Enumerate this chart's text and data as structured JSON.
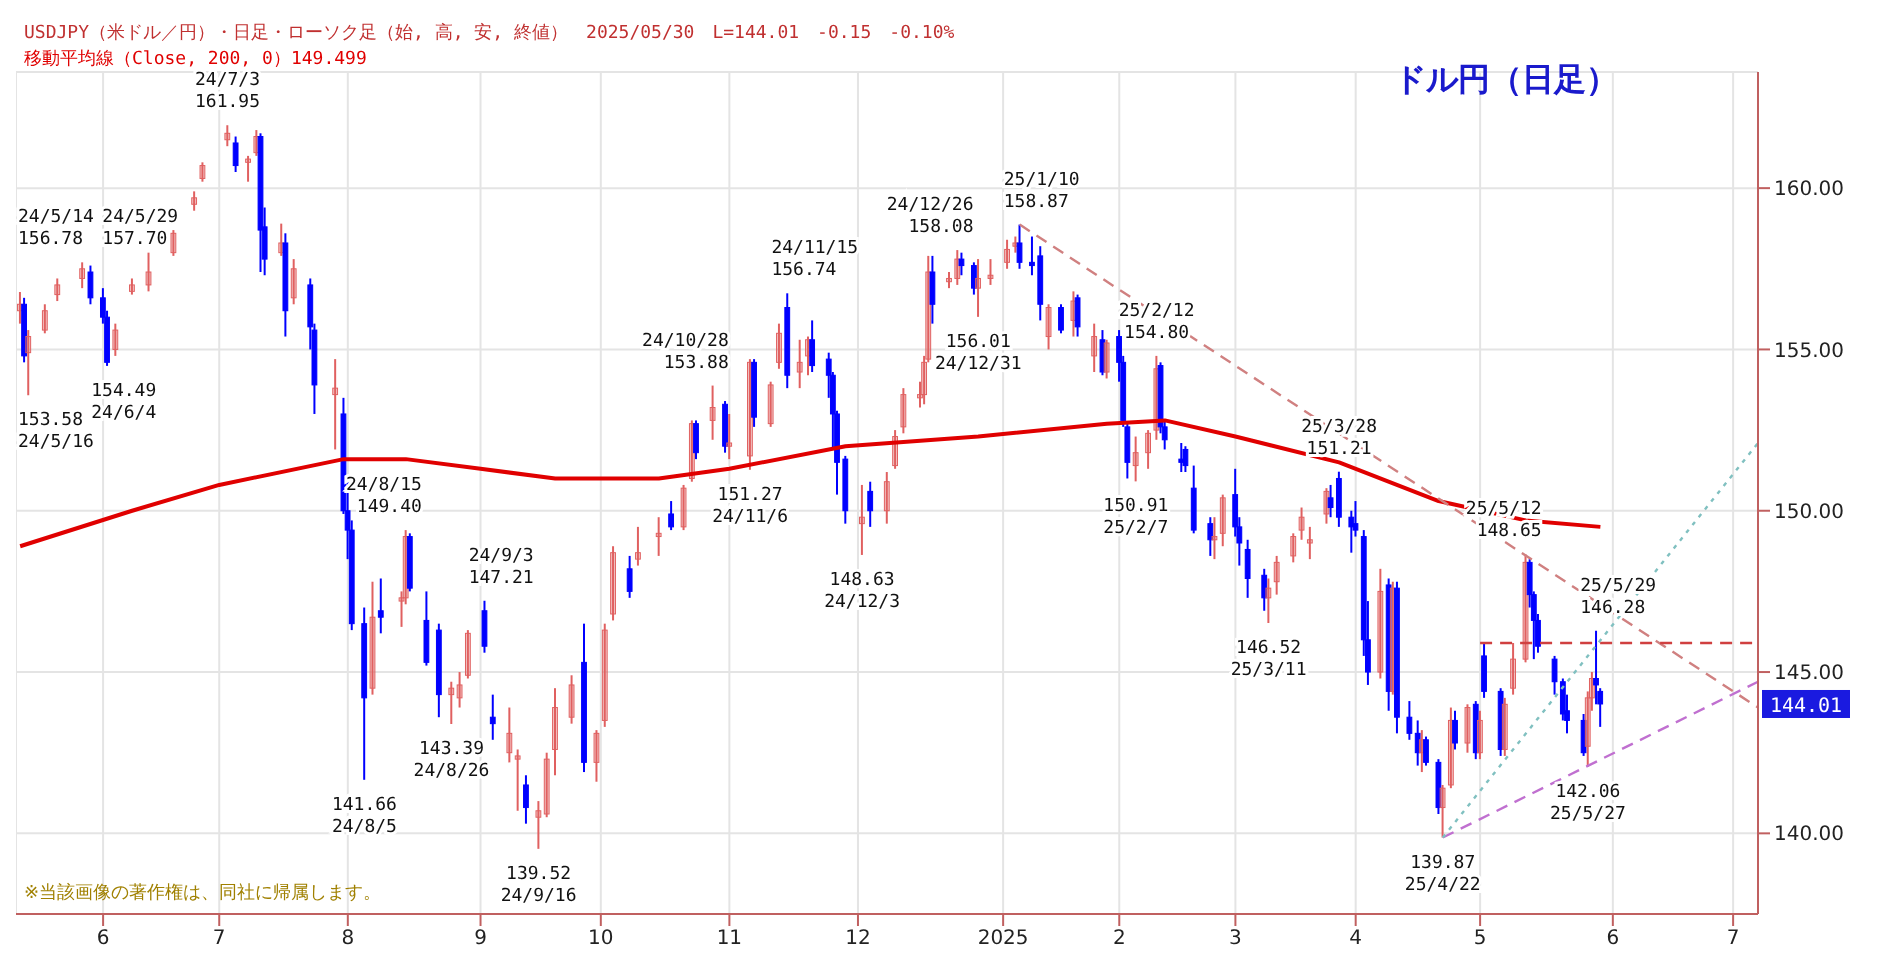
{
  "chart_data": {
    "type": "candlestick",
    "title": "ドル円（日足）",
    "subtitle": "USDJPY（米ドル／円）・日足・ローソク足（始, 高, 安, 終値）　2025/05/30　L=144.01　-0.15　-0.10%",
    "x": [
      "2024-05-14",
      "2024-05-15",
      "2024-05-16",
      "2024-05-20",
      "2024-05-23",
      "2024-05-29",
      "2024-05-31",
      "2024-06-03",
      "2024-06-04",
      "2024-06-06",
      "2024-06-10",
      "2024-06-14",
      "2024-06-20",
      "2024-06-25",
      "2024-06-27",
      "2024-07-03",
      "2024-07-05",
      "2024-07-08",
      "2024-07-10",
      "2024-07-11",
      "2024-07-12",
      "2024-07-16",
      "2024-07-17",
      "2024-07-19",
      "2024-07-23",
      "2024-07-24",
      "2024-07-29",
      "2024-07-31",
      "2024-08-01",
      "2024-08-02",
      "2024-08-05",
      "2024-08-07",
      "2024-08-09",
      "2024-08-14",
      "2024-08-15",
      "2024-08-16",
      "2024-08-20",
      "2024-08-23",
      "2024-08-26",
      "2024-08-28",
      "2024-08-30",
      "2024-09-03",
      "2024-09-05",
      "2024-09-09",
      "2024-09-11",
      "2024-09-13",
      "2024-09-16",
      "2024-09-18",
      "2024-09-20",
      "2024-09-24",
      "2024-09-27",
      "2024-09-30",
      "2024-10-02",
      "2024-10-04",
      "2024-10-08",
      "2024-10-10",
      "2024-10-15",
      "2024-10-18",
      "2024-10-21",
      "2024-10-23",
      "2024-10-24",
      "2024-10-28",
      "2024-10-31",
      "2024-11-01",
      "2024-11-06",
      "2024-11-07",
      "2024-11-11",
      "2024-11-13",
      "2024-11-15",
      "2024-11-18",
      "2024-11-20",
      "2024-11-21",
      "2024-11-25",
      "2024-11-26",
      "2024-11-27",
      "2024-11-29",
      "2024-12-03",
      "2024-12-05",
      "2024-12-09",
      "2024-12-11",
      "2024-12-13",
      "2024-12-17",
      "2024-12-18",
      "2024-12-19",
      "2024-12-20",
      "2024-12-24",
      "2024-12-26",
      "2024-12-27",
      "2024-12-30",
      "2024-12-31",
      "2025-01-03",
      "2025-01-07",
      "2025-01-09",
      "2025-01-10",
      "2025-01-13",
      "2025-01-15",
      "2025-01-17",
      "2025-01-20",
      "2025-01-23",
      "2025-01-24",
      "2025-01-28",
      "2025-01-30",
      "2025-01-31",
      "2025-02-03",
      "2025-02-04",
      "2025-02-05",
      "2025-02-07",
      "2025-02-10",
      "2025-02-12",
      "2025-02-13",
      "2025-02-14",
      "2025-02-18",
      "2025-02-19",
      "2025-02-21",
      "2025-02-25",
      "2025-02-26",
      "2025-02-28",
      "2025-03-03",
      "2025-03-04",
      "2025-03-06",
      "2025-03-10",
      "2025-03-11",
      "2025-03-13",
      "2025-03-17",
      "2025-03-19",
      "2025-03-21",
      "2025-03-25",
      "2025-03-26",
      "2025-03-28",
      "2025-03-31",
      "2025-04-01",
      "2025-04-03",
      "2025-04-04",
      "2025-04-07",
      "2025-04-09",
      "2025-04-10",
      "2025-04-11",
      "2025-04-14",
      "2025-04-16",
      "2025-04-17",
      "2025-04-18",
      "2025-04-21",
      "2025-04-22",
      "2025-04-24",
      "2025-04-25",
      "2025-04-28",
      "2025-04-30",
      "2025-05-01",
      "2025-05-02",
      "2025-05-06",
      "2025-05-07",
      "2025-05-09",
      "2025-05-12",
      "2025-05-13",
      "2025-05-14",
      "2025-05-15",
      "2025-05-19",
      "2025-05-21",
      "2025-05-22",
      "2025-05-26",
      "2025-05-27",
      "2025-05-28",
      "2025-05-29",
      "2025-05-30"
    ],
    "ohlc": [
      [
        156.2,
        156.78,
        155.8,
        156.4
      ],
      [
        156.4,
        156.6,
        154.6,
        154.8
      ],
      [
        154.9,
        155.6,
        153.58,
        155.4
      ],
      [
        155.6,
        156.4,
        155.5,
        156.2
      ],
      [
        156.7,
        157.2,
        156.5,
        157.0
      ],
      [
        157.2,
        157.7,
        156.9,
        157.5
      ],
      [
        157.4,
        157.6,
        156.4,
        156.6
      ],
      [
        156.6,
        156.9,
        155.8,
        156.0
      ],
      [
        156.0,
        156.2,
        154.49,
        154.6
      ],
      [
        155.0,
        155.8,
        154.8,
        155.6
      ],
      [
        156.8,
        157.2,
        156.7,
        157.0
      ],
      [
        157.0,
        158.0,
        156.8,
        157.4
      ],
      [
        158.0,
        158.7,
        157.9,
        158.6
      ],
      [
        159.5,
        159.9,
        159.3,
        159.7
      ],
      [
        160.3,
        160.8,
        160.2,
        160.7
      ],
      [
        161.5,
        161.95,
        161.3,
        161.7
      ],
      [
        161.4,
        161.6,
        160.5,
        160.7
      ],
      [
        160.8,
        161.0,
        160.2,
        160.9
      ],
      [
        161.1,
        161.8,
        161.0,
        161.6
      ],
      [
        161.6,
        161.7,
        157.4,
        158.7
      ],
      [
        158.8,
        159.4,
        157.3,
        157.8
      ],
      [
        158.0,
        158.9,
        157.9,
        158.3
      ],
      [
        158.3,
        158.6,
        155.4,
        156.2
      ],
      [
        156.6,
        157.8,
        156.4,
        157.5
      ],
      [
        157.0,
        157.2,
        155.0,
        155.7
      ],
      [
        155.6,
        155.8,
        153.0,
        153.9
      ],
      [
        153.6,
        154.7,
        151.9,
        153.8
      ],
      [
        153.0,
        153.5,
        149.9,
        150.0
      ],
      [
        150.0,
        150.9,
        148.5,
        149.4
      ],
      [
        149.4,
        149.7,
        146.3,
        146.5
      ],
      [
        146.5,
        147.0,
        141.66,
        144.2
      ],
      [
        144.5,
        147.8,
        144.3,
        146.7
      ],
      [
        146.9,
        147.9,
        146.2,
        146.7
      ],
      [
        147.2,
        147.5,
        146.4,
        147.3
      ],
      [
        147.3,
        149.4,
        147.1,
        149.2
      ],
      [
        149.2,
        149.3,
        147.5,
        147.6
      ],
      [
        146.6,
        147.5,
        145.2,
        145.3
      ],
      [
        146.3,
        146.5,
        143.6,
        144.3
      ],
      [
        144.3,
        144.7,
        143.39,
        144.5
      ],
      [
        144.2,
        145.0,
        143.9,
        144.6
      ],
      [
        144.9,
        146.3,
        144.8,
        146.2
      ],
      [
        146.9,
        147.21,
        145.6,
        145.8
      ],
      [
        143.6,
        144.3,
        142.9,
        143.4
      ],
      [
        142.5,
        143.9,
        142.2,
        143.1
      ],
      [
        142.3,
        142.6,
        140.7,
        142.4
      ],
      [
        141.5,
        141.8,
        140.3,
        140.8
      ],
      [
        140.5,
        141.0,
        139.52,
        140.7
      ],
      [
        140.6,
        142.5,
        140.5,
        142.3
      ],
      [
        142.6,
        144.5,
        141.8,
        143.9
      ],
      [
        143.6,
        144.9,
        143.4,
        144.6
      ],
      [
        145.3,
        146.5,
        141.9,
        142.2
      ],
      [
        142.2,
        143.2,
        141.6,
        143.1
      ],
      [
        143.5,
        146.5,
        143.3,
        146.3
      ],
      [
        146.8,
        148.9,
        146.6,
        148.7
      ],
      [
        148.2,
        148.6,
        147.3,
        147.5
      ],
      [
        148.5,
        149.5,
        148.3,
        148.7
      ],
      [
        149.2,
        149.8,
        148.6,
        149.3
      ],
      [
        149.9,
        150.3,
        149.4,
        149.5
      ],
      [
        149.5,
        150.8,
        149.4,
        150.7
      ],
      [
        151.0,
        152.8,
        150.9,
        152.7
      ],
      [
        152.7,
        152.8,
        151.6,
        151.8
      ],
      [
        152.8,
        153.88,
        152.2,
        153.2
      ],
      [
        153.3,
        153.4,
        151.8,
        152.0
      ],
      [
        152.0,
        153.0,
        151.6,
        152.1
      ],
      [
        151.7,
        154.7,
        151.27,
        154.6
      ],
      [
        154.6,
        154.7,
        152.6,
        152.9
      ],
      [
        152.7,
        154.0,
        152.6,
        153.9
      ],
      [
        154.6,
        155.8,
        154.4,
        155.5
      ],
      [
        156.3,
        156.74,
        153.8,
        154.2
      ],
      [
        154.3,
        155.3,
        153.8,
        154.6
      ],
      [
        154.8,
        155.4,
        154.2,
        155.3
      ],
      [
        155.3,
        155.9,
        154.3,
        154.5
      ],
      [
        154.7,
        154.9,
        153.5,
        154.2
      ],
      [
        154.2,
        154.3,
        151.9,
        153.0
      ],
      [
        153.0,
        153.1,
        150.5,
        151.5
      ],
      [
        151.6,
        151.7,
        149.6,
        150.0
      ],
      [
        149.6,
        150.8,
        148.63,
        149.8
      ],
      [
        150.6,
        150.9,
        149.5,
        150.0
      ],
      [
        150.0,
        151.2,
        149.6,
        150.9
      ],
      [
        151.4,
        152.5,
        151.3,
        152.3
      ],
      [
        152.6,
        153.8,
        152.4,
        153.6
      ],
      [
        153.5,
        154.0,
        153.2,
        153.6
      ],
      [
        153.6,
        154.8,
        153.3,
        154.6
      ],
      [
        154.7,
        157.9,
        154.6,
        157.4
      ],
      [
        157.4,
        157.9,
        155.8,
        156.4
      ],
      [
        157.1,
        157.4,
        156.9,
        157.2
      ],
      [
        157.2,
        158.08,
        157.0,
        157.8
      ],
      [
        157.8,
        158.0,
        157.3,
        157.6
      ],
      [
        157.6,
        157.7,
        156.7,
        156.9
      ],
      [
        156.9,
        157.8,
        156.01,
        157.2
      ],
      [
        157.2,
        157.8,
        157.0,
        157.3
      ],
      [
        157.7,
        158.4,
        157.5,
        158.1
      ],
      [
        158.2,
        158.5,
        158.0,
        158.3
      ],
      [
        158.3,
        158.87,
        157.5,
        157.7
      ],
      [
        157.7,
        158.5,
        157.3,
        157.6
      ],
      [
        157.9,
        158.2,
        155.9,
        156.4
      ],
      [
        155.4,
        156.4,
        155.0,
        156.3
      ],
      [
        156.3,
        156.4,
        155.5,
        155.6
      ],
      [
        155.9,
        156.8,
        155.4,
        156.5
      ],
      [
        156.6,
        156.7,
        155.4,
        155.7
      ],
      [
        154.8,
        155.8,
        154.3,
        155.4
      ],
      [
        155.3,
        155.6,
        154.2,
        154.3
      ],
      [
        154.3,
        155.3,
        154.1,
        155.2
      ],
      [
        155.4,
        155.6,
        154.0,
        154.6
      ],
      [
        154.6,
        154.8,
        152.6,
        152.8
      ],
      [
        152.6,
        152.7,
        151.0,
        151.5
      ],
      [
        151.4,
        152.3,
        150.91,
        151.8
      ],
      [
        151.8,
        152.5,
        151.3,
        152.4
      ],
      [
        152.5,
        154.8,
        152.2,
        154.4
      ],
      [
        154.5,
        154.6,
        152.4,
        152.6
      ],
      [
        152.6,
        152.8,
        151.9,
        152.2
      ],
      [
        151.6,
        152.1,
        151.2,
        151.5
      ],
      [
        151.9,
        152.0,
        151.2,
        151.4
      ],
      [
        150.7,
        151.4,
        149.3,
        149.4
      ],
      [
        149.6,
        149.8,
        148.6,
        149.1
      ],
      [
        149.1,
        149.8,
        148.5,
        149.2
      ],
      [
        149.3,
        150.5,
        148.9,
        150.4
      ],
      [
        150.5,
        151.3,
        149.2,
        149.5
      ],
      [
        149.5,
        149.8,
        148.3,
        149.0
      ],
      [
        148.8,
        149.1,
        147.3,
        147.9
      ],
      [
        148.0,
        148.2,
        146.9,
        147.3
      ],
      [
        147.3,
        147.9,
        146.52,
        147.6
      ],
      [
        147.8,
        148.6,
        147.4,
        148.4
      ],
      [
        148.6,
        149.3,
        148.4,
        149.2
      ],
      [
        149.4,
        150.1,
        149.1,
        149.8
      ],
      [
        149.0,
        149.5,
        148.5,
        149.1
      ],
      [
        149.9,
        150.7,
        149.6,
        150.6
      ],
      [
        150.4,
        150.8,
        149.8,
        150.1
      ],
      [
        151.0,
        151.21,
        149.5,
        149.8
      ],
      [
        149.8,
        150.0,
        148.7,
        149.5
      ],
      [
        149.6,
        150.3,
        149.2,
        149.4
      ],
      [
        149.2,
        149.4,
        145.5,
        146.0
      ],
      [
        146.0,
        147.2,
        144.6,
        145.0
      ],
      [
        145.0,
        148.2,
        144.8,
        147.5
      ],
      [
        147.7,
        147.9,
        143.8,
        144.4
      ],
      [
        144.4,
        147.8,
        144.3,
        147.6
      ],
      [
        147.6,
        147.8,
        143.1,
        143.6
      ],
      [
        143.6,
        144.1,
        142.9,
        143.1
      ],
      [
        143.1,
        143.5,
        142.1,
        142.5
      ],
      [
        142.5,
        143.2,
        141.9,
        142.9
      ],
      [
        142.9,
        143.0,
        142.1,
        142.2
      ],
      [
        142.2,
        142.3,
        140.6,
        140.8
      ],
      [
        140.8,
        141.5,
        139.87,
        141.4
      ],
      [
        141.5,
        143.9,
        141.4,
        143.5
      ],
      [
        143.5,
        143.8,
        142.6,
        142.8
      ],
      [
        142.8,
        144.0,
        142.5,
        143.9
      ],
      [
        144.0,
        144.1,
        142.3,
        142.5
      ],
      [
        142.5,
        143.8,
        142.3,
        143.5
      ],
      [
        145.5,
        145.9,
        144.2,
        144.4
      ],
      [
        144.4,
        144.5,
        142.4,
        142.6
      ],
      [
        142.6,
        144.2,
        142.4,
        144.0
      ],
      [
        144.5,
        145.9,
        144.3,
        145.4
      ],
      [
        145.4,
        148.65,
        145.3,
        148.4
      ],
      [
        148.4,
        148.5,
        147.0,
        147.4
      ],
      [
        147.4,
        147.5,
        145.4,
        146.6
      ],
      [
        146.6,
        146.8,
        145.6,
        145.8
      ],
      [
        145.4,
        145.5,
        144.3,
        144.7
      ],
      [
        144.7,
        144.8,
        143.5,
        143.7
      ],
      [
        143.8,
        144.3,
        143.1,
        143.5
      ],
      [
        143.5,
        143.7,
        142.4,
        142.5
      ],
      [
        142.7,
        144.4,
        142.06,
        144.2
      ],
      [
        144.2,
        145.0,
        143.8,
        144.8
      ],
      [
        144.8,
        146.28,
        144.0,
        144.6
      ],
      [
        144.4,
        144.5,
        143.3,
        144.01
      ]
    ],
    "colors": [
      "#e06060",
      "#0000ff",
      "#e06060",
      "#e06060",
      "#e06060",
      "#e06060",
      "#0000ff",
      "#0000ff",
      "#0000ff",
      "#e06060",
      "#e06060",
      "#e06060",
      "#e06060",
      "#e06060",
      "#e06060",
      "#e06060",
      "#0000ff",
      "#e06060",
      "#e06060",
      "#0000ff",
      "#0000ff",
      "#e06060",
      "#0000ff",
      "#e06060",
      "#0000ff",
      "#0000ff",
      "#e06060",
      "#0000ff",
      "#0000ff",
      "#0000ff",
      "#0000ff",
      "#e06060",
      "#0000ff",
      "#e06060",
      "#e06060",
      "#0000ff",
      "#0000ff",
      "#0000ff",
      "#e06060",
      "#e06060",
      "#e06060",
      "#0000ff",
      "#0000ff",
      "#e06060",
      "#e06060",
      "#0000ff",
      "#e06060",
      "#e06060",
      "#e06060",
      "#e06060",
      "#0000ff",
      "#e06060",
      "#e06060",
      "#e06060",
      "#0000ff",
      "#e06060",
      "#e06060",
      "#0000ff",
      "#e06060",
      "#e06060",
      "#0000ff",
      "#e06060",
      "#0000ff",
      "#e06060",
      "#e06060",
      "#0000ff",
      "#e06060",
      "#e06060",
      "#0000ff",
      "#e06060",
      "#e06060",
      "#0000ff",
      "#0000ff",
      "#0000ff",
      "#0000ff",
      "#0000ff",
      "#e06060",
      "#0000ff",
      "#e06060",
      "#e06060",
      "#e06060",
      "#e06060",
      "#e06060",
      "#e06060",
      "#0000ff",
      "#e06060",
      "#e06060",
      "#0000ff",
      "#0000ff",
      "#e06060",
      "#e06060",
      "#e06060",
      "#e06060",
      "#0000ff",
      "#0000ff",
      "#0000ff",
      "#e06060",
      "#0000ff",
      "#e06060",
      "#0000ff",
      "#e06060",
      "#0000ff",
      "#e06060",
      "#0000ff",
      "#0000ff",
      "#0000ff",
      "#e06060",
      "#e06060",
      "#e06060",
      "#0000ff",
      "#0000ff",
      "#0000ff",
      "#0000ff",
      "#0000ff",
      "#0000ff",
      "#e06060",
      "#e06060",
      "#0000ff",
      "#0000ff",
      "#0000ff",
      "#0000ff",
      "#e06060",
      "#e06060",
      "#e06060",
      "#e06060",
      "#e06060",
      "#e06060",
      "#0000ff",
      "#0000ff",
      "#0000ff",
      "#0000ff",
      "#0000ff",
      "#0000ff",
      "#e06060",
      "#0000ff",
      "#e06060",
      "#0000ff",
      "#0000ff",
      "#0000ff",
      "#e06060",
      "#0000ff",
      "#0000ff",
      "#e06060",
      "#e06060",
      "#0000ff",
      "#e06060",
      "#0000ff",
      "#e06060",
      "#0000ff",
      "#0000ff",
      "#e06060",
      "#e06060",
      "#e06060",
      "#0000ff",
      "#0000ff",
      "#0000ff",
      "#0000ff",
      "#0000ff",
      "#0000ff",
      "#0000ff",
      "#e06060",
      "#e06060",
      "#0000ff",
      "#0000ff"
    ],
    "series": [
      {
        "name": "移動平均線（Close, 200, 0）149.499",
        "type": "line",
        "color": "#e00000",
        "x": [
          "2024-05-14",
          "2024-06-10",
          "2024-07-01",
          "2024-07-31",
          "2024-08-15",
          "2024-09-02",
          "2024-09-20",
          "2024-10-15",
          "2024-11-01",
          "2024-11-29",
          "2024-12-31",
          "2025-01-31",
          "2025-02-14",
          "2025-03-03",
          "2025-03-28",
          "2025-04-21",
          "2025-05-12",
          "2025-05-30"
        ],
        "values": [
          148.9,
          150.0,
          150.8,
          151.6,
          151.6,
          151.3,
          151.0,
          151.0,
          151.3,
          152.0,
          152.3,
          152.7,
          152.8,
          152.3,
          151.5,
          150.3,
          149.7,
          149.5
        ]
      },
      {
        "type": "line",
        "color": "#d08080",
        "line_style": "dashed",
        "x": [
          "2025-01-10",
          "2025-07-07"
        ],
        "values": [
          158.87,
          143.9
        ]
      },
      {
        "type": "line",
        "color": "#d04040",
        "line_style": "dashed",
        "x": [
          "2025-05-01",
          "2025-07-07"
        ],
        "values": [
          145.9,
          145.9
        ]
      },
      {
        "type": "line",
        "color": "#c070d0",
        "line_style": "dashed",
        "x": [
          "2025-04-22",
          "2025-07-07"
        ],
        "values": [
          139.87,
          144.7
        ]
      },
      {
        "type": "line",
        "color": "#80c0c0",
        "line_style": "dotted",
        "x": [
          "2025-04-22",
          "2025-07-07"
        ],
        "values": [
          139.87,
          152.1
        ]
      }
    ],
    "xlim": [
      "2024-05-13",
      "2025-07-07"
    ],
    "xticks": [
      {
        "value": "2024-06-03",
        "label": "6"
      },
      {
        "value": "2024-07-01",
        "label": "7"
      },
      {
        "value": "2024-08-01",
        "label": "8"
      },
      {
        "value": "2024-09-02",
        "label": "9"
      },
      {
        "value": "2024-10-01",
        "label": "10"
      },
      {
        "value": "2024-11-01",
        "label": "11"
      },
      {
        "value": "2024-12-02",
        "label": "12"
      },
      {
        "value": "2025-01-06",
        "label": "2025"
      },
      {
        "value": "2025-02-03",
        "label": "2"
      },
      {
        "value": "2025-03-03",
        "label": "3"
      },
      {
        "value": "2025-04-01",
        "label": "4"
      },
      {
        "value": "2025-05-01",
        "label": "5"
      },
      {
        "value": "2025-06-02",
        "label": "6"
      },
      {
        "value": "2025-07-01",
        "label": "7"
      }
    ],
    "ylim": [
      137.5,
      163.6
    ],
    "yticks": [
      {
        "value": 140,
        "label": "140.00"
      },
      {
        "value": 145,
        "label": "145.00"
      },
      {
        "value": 150,
        "label": "150.00"
      },
      {
        "value": 155,
        "label": "155.00"
      },
      {
        "value": 160,
        "label": "160.00"
      }
    ],
    "grid": true,
    "legend": "top left",
    "annotations": [
      {
        "text": "24/5/14\n156.78",
        "x": "2024-05-14",
        "y": 156.78
      },
      {
        "text": "153.58\n24/5/16",
        "x": "2024-05-16",
        "y": 153.58
      },
      {
        "text": "24/5/29\n157.70",
        "x": "2024-05-29",
        "y": 157.7
      },
      {
        "text": "154.49\n24/6/4",
        "x": "2024-06-04",
        "y": 154.49
      },
      {
        "text": "24/7/3\n161.95",
        "x": "2024-07-03",
        "y": 161.95
      },
      {
        "text": "141.66\n24/8/5",
        "x": "2024-08-05",
        "y": 141.66
      },
      {
        "text": "24/8/15\n149.40",
        "x": "2024-08-15",
        "y": 149.4
      },
      {
        "text": "143.39\n24/8/26",
        "x": "2024-08-26",
        "y": 143.39
      },
      {
        "text": "24/9/3\n147.21",
        "x": "2024-09-03",
        "y": 147.21
      },
      {
        "text": "139.52\n24/9/16",
        "x": "2024-09-16",
        "y": 139.52
      },
      {
        "text": "24/10/28\n153.88",
        "x": "2024-10-28",
        "y": 153.88
      },
      {
        "text": "151.27\n24/11/6",
        "x": "2024-11-06",
        "y": 151.27
      },
      {
        "text": "24/11/15\n156.74",
        "x": "2024-11-15",
        "y": 156.74
      },
      {
        "text": "148.63\n24/12/3",
        "x": "2024-12-03",
        "y": 148.63
      },
      {
        "text": "24/12/26\n158.08",
        "x": "2024-12-26",
        "y": 158.08
      },
      {
        "text": "156.01\n24/12/31",
        "x": "2024-12-31",
        "y": 156.01
      },
      {
        "text": "25/1/10\n158.87",
        "x": "2025-01-10",
        "y": 158.87
      },
      {
        "text": "150.91\n25/2/7",
        "x": "2025-02-07",
        "y": 150.91
      },
      {
        "text": "25/2/12\n154.80",
        "x": "2025-02-12",
        "y": 154.8
      },
      {
        "text": "146.52\n25/3/11",
        "x": "2025-03-11",
        "y": 146.52
      },
      {
        "text": "25/3/28\n151.21",
        "x": "2025-03-28",
        "y": 151.21
      },
      {
        "text": "139.87\n25/4/22",
        "x": "2025-04-22",
        "y": 139.87
      },
      {
        "text": "25/5/12\n148.65",
        "x": "2025-05-12",
        "y": 148.65
      },
      {
        "text": "142.06\n25/5/27",
        "x": "2025-05-27",
        "y": 142.06
      },
      {
        "text": "25/5/29\n146.28",
        "x": "2025-05-29",
        "y": 146.28
      },
      {
        "text": "144.01",
        "y": 144.01
      },
      "※当該画像の著作権は、同社に帰属します。"
    ]
  }
}
